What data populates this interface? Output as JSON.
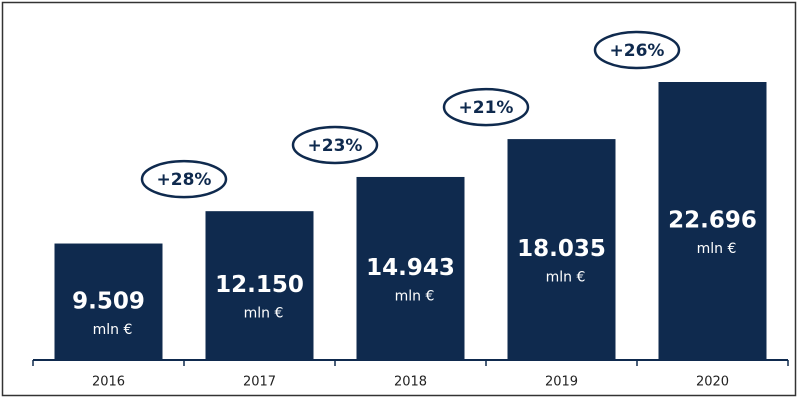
{
  "chart_data": {
    "type": "bar",
    "categories": [
      "2016",
      "2017",
      "2018",
      "2019",
      "2020"
    ],
    "values": [
      9509,
      12150,
      14943,
      18035,
      22696
    ],
    "value_labels": [
      "9.509",
      "12.150",
      "14.943",
      "18.035",
      "22.696"
    ],
    "value_unit": "mln €",
    "growth_labels": [
      "+28%",
      "+23%",
      "+21%",
      "+26%"
    ],
    "color": "#0f2a4e"
  }
}
